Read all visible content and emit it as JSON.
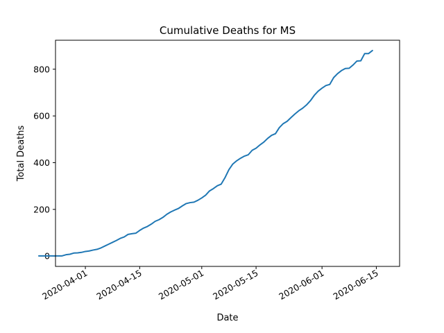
{
  "chart_data": {
    "type": "line",
    "title": "Cumulative Deaths for MS",
    "xlabel": "Date",
    "ylabel": "Total Deaths",
    "x_tick_labels": [
      "2020-04-01",
      "2020-04-15",
      "2020-05-01",
      "2020-05-15",
      "2020-06-01",
      "2020-06-15"
    ],
    "x_tick_days": [
      17,
      31,
      47,
      61,
      78,
      92
    ],
    "y_ticks": [
      0,
      200,
      400,
      600,
      800
    ],
    "xlim_days": [
      9.3,
      98.0
    ],
    "ylim": [
      -44,
      924
    ],
    "grid": false,
    "color": "#1f77b4",
    "series": [
      {
        "name": "MS",
        "x_start": "2020-03-19",
        "x_day_offset": 5,
        "values": [
          1,
          1,
          1,
          1,
          1,
          1,
          1,
          6,
          8,
          13,
          14,
          16,
          20,
          22,
          26,
          29,
          35,
          43,
          51,
          59,
          67,
          76,
          82,
          93,
          96,
          98,
          110,
          120,
          127,
          137,
          149,
          156,
          166,
          179,
          189,
          197,
          204,
          215,
          225,
          229,
          231,
          239,
          249,
          261,
          279,
          289,
          301,
          308,
          336,
          370,
          394,
          408,
          419,
          428,
          434,
          453,
          462,
          476,
          488,
          504,
          517,
          524,
          550,
          567,
          577,
          593,
          608,
          622,
          633,
          647,
          665,
          688,
          706,
          719,
          730,
          735,
          764,
          781,
          794,
          803,
          804,
          818,
          835,
          836,
          867,
          867,
          880
        ]
      }
    ]
  }
}
